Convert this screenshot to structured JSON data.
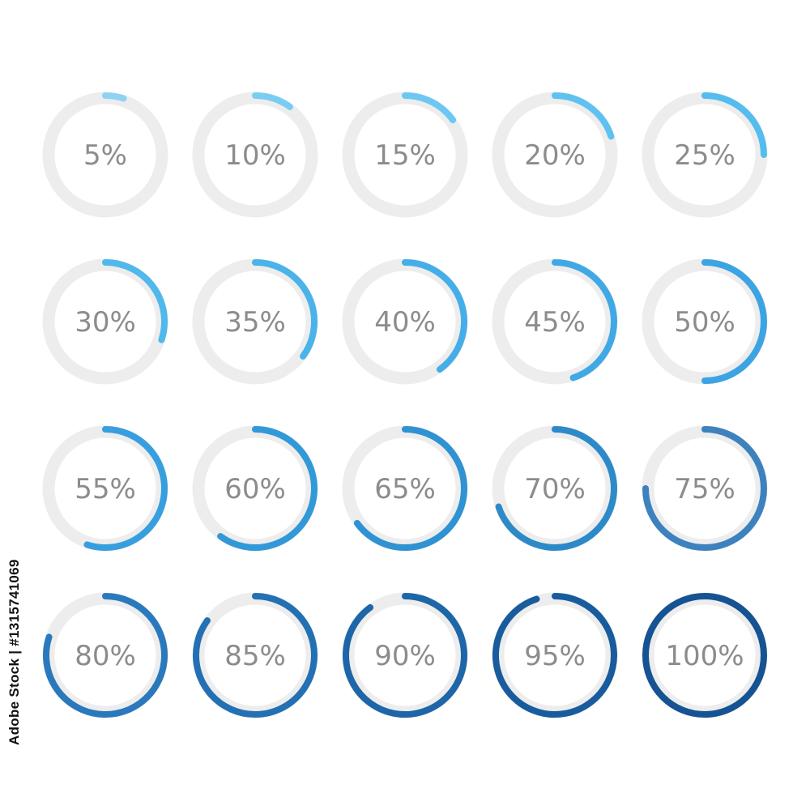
{
  "side_text": "Adobe Stock | #131574106​9",
  "background_color": "#ffffff",
  "track_color": "#ededed",
  "label_color": "#8c8c8c",
  "rings": [
    {
      "label": "5%",
      "progress": 0.05,
      "color": "#8fd3f4"
    },
    {
      "label": "10%",
      "progress": 0.1,
      "color": "#79cdf3"
    },
    {
      "label": "15%",
      "progress": 0.15,
      "color": "#6cc8f2"
    },
    {
      "label": "20%",
      "progress": 0.2,
      "color": "#5ec2f0"
    },
    {
      "label": "25%",
      "progress": 0.25,
      "color": "#55bdee"
    },
    {
      "label": "30%",
      "progress": 0.3,
      "color": "#4fb8ec"
    },
    {
      "label": "35%",
      "progress": 0.35,
      "color": "#4ab3ea"
    },
    {
      "label": "40%",
      "progress": 0.4,
      "color": "#45aee8"
    },
    {
      "label": "45%",
      "progress": 0.45,
      "color": "#40a9e5"
    },
    {
      "label": "50%",
      "progress": 0.5,
      "color": "#3ca4e2"
    },
    {
      "label": "55%",
      "progress": 0.55,
      "color": "#379fdf"
    },
    {
      "label": "60%",
      "progress": 0.6,
      "color": "#3299d9"
    },
    {
      "label": "65%",
      "progress": 0.65,
      "color": "#2f92d2"
    },
    {
      "label": "70%",
      "progress": 0.7,
      "color": "#2d8ac9"
    },
    {
      "label": "75%",
      "progress": 0.75,
      "color": "#3d82be"
    },
    {
      "label": "80%",
      "progress": 0.8,
      "color": "#2a79bd"
    },
    {
      "label": "85%",
      "progress": 0.85,
      "color": "#2370b3"
    },
    {
      "label": "90%",
      "progress": 0.9,
      "color": "#1d66a8"
    },
    {
      "label": "95%",
      "progress": 0.95,
      "color": "#185c9e"
    },
    {
      "label": "100%",
      "progress": 1.0,
      "color": "#155393"
    }
  ]
}
